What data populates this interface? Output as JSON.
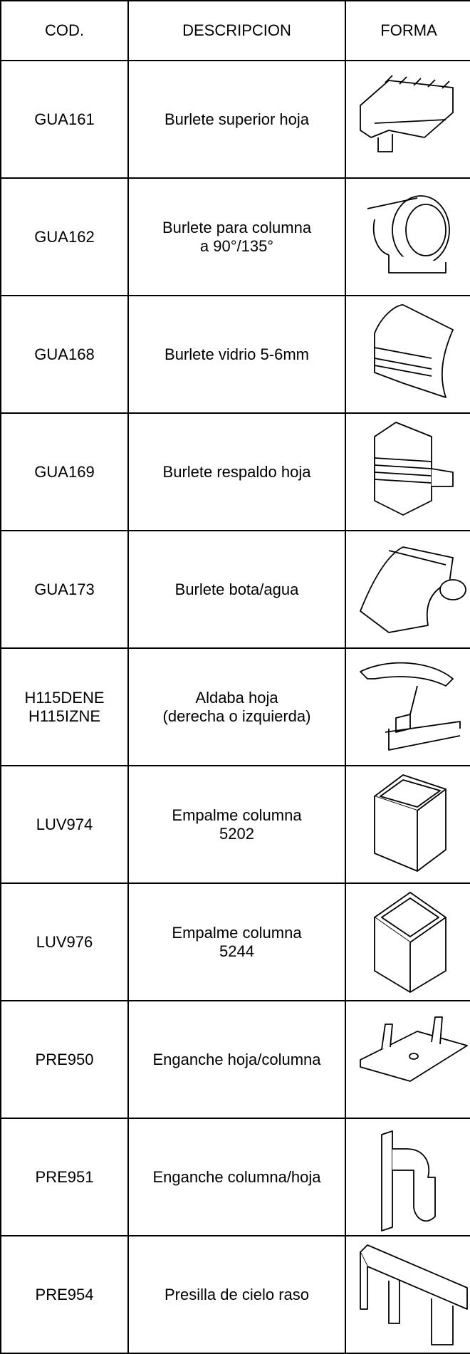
{
  "table": {
    "header": [
      "COD.",
      "DESCRIPCION",
      "FORMA"
    ],
    "rows": [
      {
        "code": [
          "GUA161"
        ],
        "description": [
          "Burlete superior hoja"
        ]
      },
      {
        "code": [
          "GUA162"
        ],
        "description": [
          "Burlete para columna",
          "a 90°/135°"
        ]
      },
      {
        "code": [
          "GUA168"
        ],
        "description": [
          "Burlete vidrio 5-6mm"
        ]
      },
      {
        "code": [
          "GUA169"
        ],
        "description": [
          "Burlete respaldo hoja"
        ]
      },
      {
        "code": [
          "GUA173"
        ],
        "description": [
          "Burlete bota/agua"
        ]
      },
      {
        "code": [
          "H115DENE",
          "H115IZNE"
        ],
        "description": [
          "Aldaba hoja",
          "(derecha o izquierda)"
        ]
      },
      {
        "code": [
          "LUV974"
        ],
        "description": [
          "Empalme columna",
          "5202"
        ]
      },
      {
        "code": [
          "LUV976"
        ],
        "description": [
          "Empalme columna",
          "5244"
        ]
      },
      {
        "code": [
          "PRE950"
        ],
        "description": [
          "Enganche hoja/columna"
        ]
      },
      {
        "code": [
          "PRE951"
        ],
        "description": [
          "Enganche columna/hoja"
        ]
      },
      {
        "code": [
          "PRE954"
        ],
        "description": [
          "Presilla de cielo raso"
        ]
      }
    ]
  }
}
